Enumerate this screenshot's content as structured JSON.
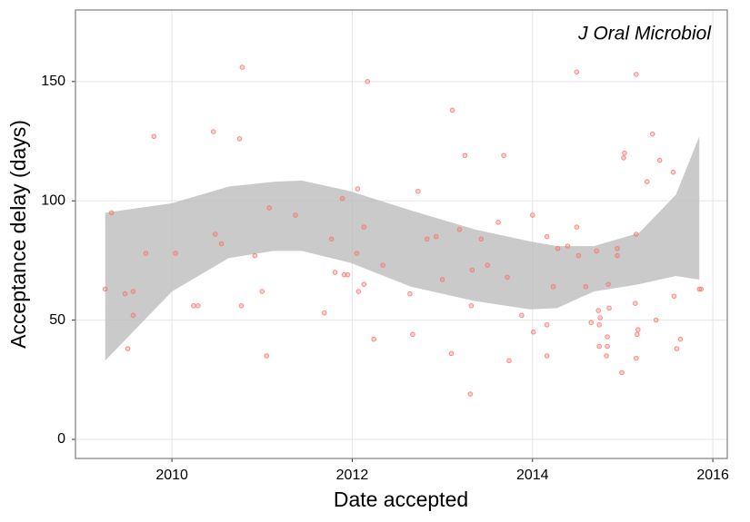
{
  "chart_data": {
    "type": "scatter",
    "annotation": "J Oral Microbiol",
    "xlabel": "Date accepted",
    "ylabel": "Acceptance delay (days)",
    "color": "#f8766d",
    "band_color": "#bdbdbd",
    "grid": true,
    "xlim": [
      2008.93,
      2016.16
    ],
    "ylim": [
      -8,
      180
    ],
    "xticks": [
      2010,
      2012,
      2014,
      2016
    ],
    "yticks": [
      0,
      50,
      100,
      150
    ],
    "x": [
      2009.26,
      2009.33,
      2009.48,
      2009.57,
      2009.57,
      2009.51,
      2009.71,
      2009.8,
      2010.04,
      2010.46,
      2010.48,
      2010.55,
      2010.24,
      2010.29,
      2010.78,
      2010.75,
      2010.77,
      2010.92,
      2011.0,
      2011.08,
      2011.05,
      2011.37,
      2011.69,
      2011.77,
      2011.81,
      2011.89,
      2011.91,
      2011.95,
      2012.05,
      2012.06,
      2012.07,
      2012.13,
      2012.13,
      2012.17,
      2012.24,
      2012.34,
      2012.64,
      2012.67,
      2012.73,
      2012.83,
      2012.93,
      2013.0,
      2013.1,
      2013.11,
      2013.19,
      2013.25,
      2013.31,
      2013.32,
      2013.33,
      2013.43,
      2013.5,
      2013.62,
      2013.68,
      2013.72,
      2013.74,
      2013.88,
      2014.0,
      2014.01,
      2014.16,
      2014.16,
      2014.16,
      2014.23,
      2014.28,
      2014.39,
      2014.49,
      2014.49,
      2014.51,
      2014.59,
      2014.65,
      2014.71,
      2014.73,
      2014.74,
      2014.75,
      2014.74,
      2014.83,
      2014.83,
      2014.82,
      2014.84,
      2014.85,
      2014.94,
      2014.94,
      2014.99,
      2015.01,
      2015.02,
      2015.15,
      2015.14,
      2015.15,
      2015.17,
      2015.16,
      2015.15,
      2015.27,
      2015.33,
      2015.37,
      2015.41,
      2015.56,
      2015.57,
      2015.6,
      2015.64,
      2015.85,
      2015.87
    ],
    "values": [
      63,
      95,
      61,
      62,
      52,
      38,
      78,
      127,
      78,
      129,
      86,
      82,
      56,
      56,
      156,
      126,
      56,
      77,
      62,
      97,
      35,
      94,
      53,
      84,
      70,
      101,
      69,
      69,
      78,
      105,
      62,
      89,
      65,
      150,
      42,
      73,
      61,
      44,
      104,
      84,
      85,
      67,
      36,
      138,
      88,
      119,
      19,
      56,
      71,
      84,
      73,
      91,
      119,
      68,
      33,
      52,
      94,
      45,
      85,
      48,
      35,
      64,
      80,
      81,
      154,
      89,
      77,
      64,
      49,
      79,
      54,
      48,
      51,
      39,
      43,
      39,
      35,
      65,
      55,
      80,
      77,
      28,
      118,
      120,
      153,
      57,
      86,
      46,
      44,
      34,
      108,
      128,
      50,
      117,
      112,
      60,
      38,
      42,
      63,
      63
    ],
    "band": {
      "x": [
        2009.26,
        2010,
        2010.63,
        2011.13,
        2011.44,
        2011.98,
        2012.65,
        2013.36,
        2013.97,
        2014.27,
        2014.68,
        2015.18,
        2015.59,
        2015.85
      ],
      "upper": [
        95,
        99,
        106,
        108,
        108.5,
        104,
        96,
        88,
        83,
        81,
        81,
        86.5,
        102.5,
        127
      ],
      "lower": [
        33,
        62,
        76,
        79,
        79,
        74,
        64,
        58,
        54.5,
        55,
        62,
        65,
        68.5,
        67
      ]
    }
  }
}
